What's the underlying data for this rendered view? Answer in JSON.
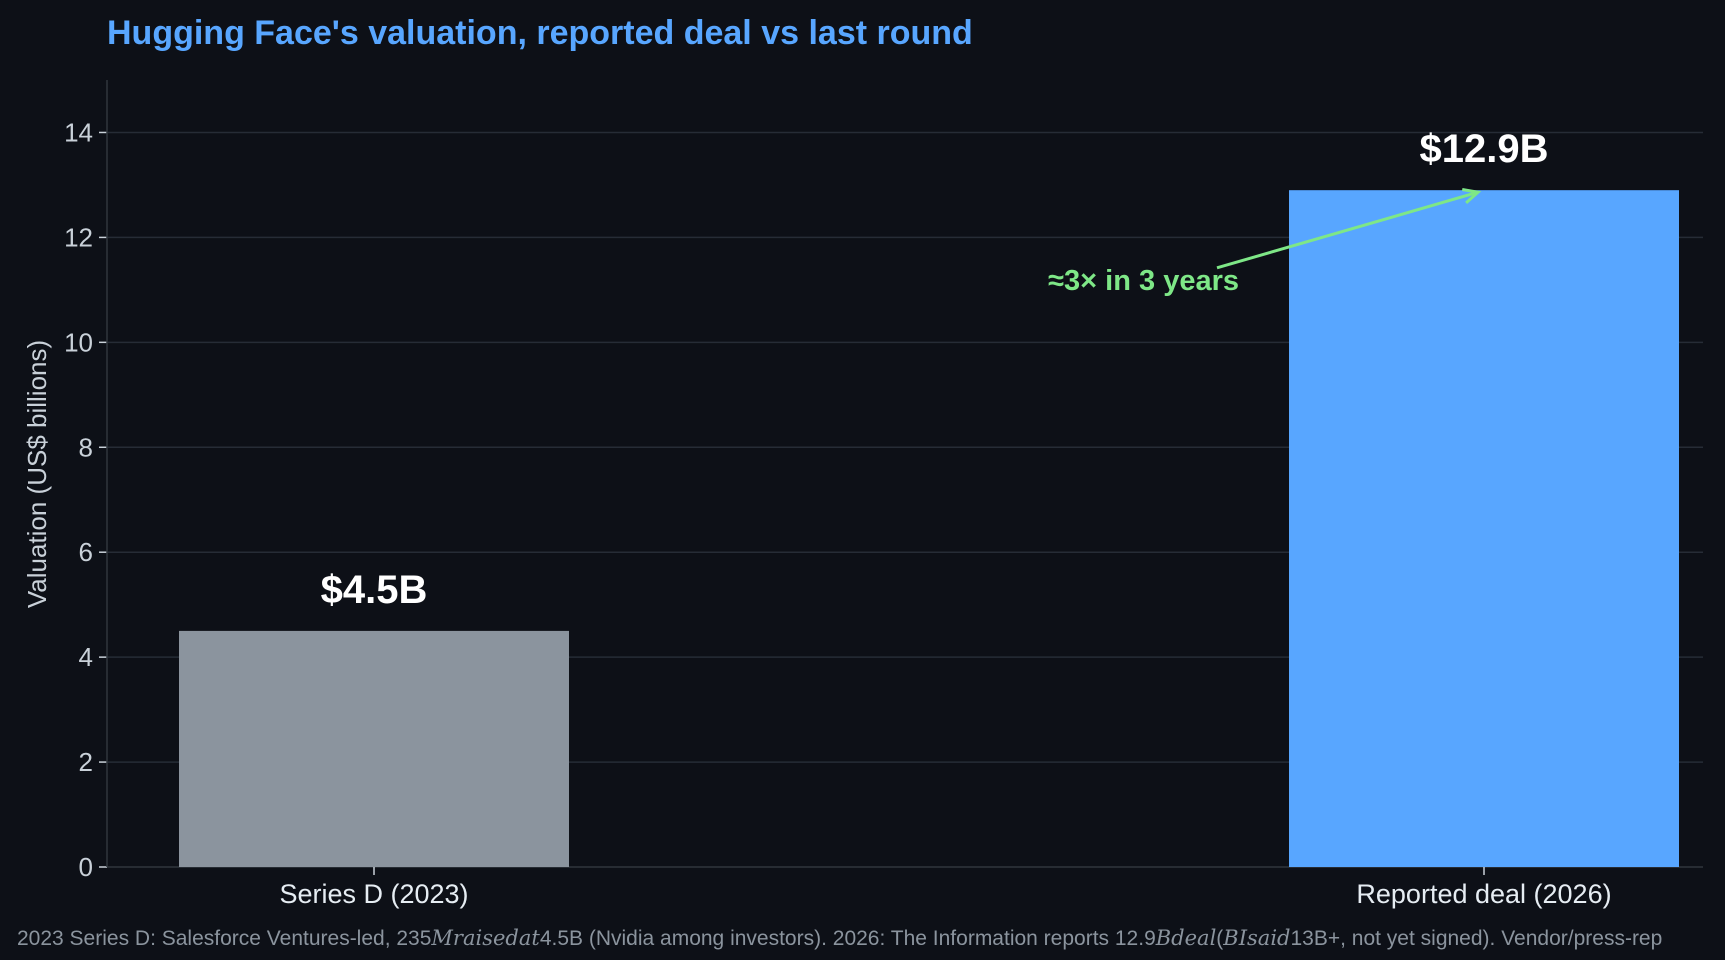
{
  "chart_data": {
    "type": "bar",
    "title": "Hugging Face's valuation, reported deal vs last round",
    "categories": [
      "Series D (2023)",
      "Reported deal (2026)"
    ],
    "values": [
      4.5,
      12.9
    ],
    "value_labels": [
      "$4.5B",
      "$12.9B"
    ],
    "colors": [
      "#8b949e",
      "#58a6ff"
    ],
    "ylabel": "Valuation (US$ billions)",
    "ylim": [
      0,
      15
    ],
    "yticks": [
      0,
      2,
      4,
      6,
      8,
      10,
      12,
      14
    ],
    "grid": "horizontal",
    "annotation": {
      "text": "≈3× in 3 years",
      "color": "#7ee787",
      "arrow_to_category": 1,
      "arrow_to_value": 12.9
    }
  },
  "footnote": {
    "part1": "2023 Series D: Salesforce Ventures-led, 235",
    "part2": "Mraisedat",
    "part3": "4.5B (Nvidia among investors). 2026: The Information reports 12.9",
    "part4": "Bdeal",
    "part5": "(",
    "part6": "BIsaid",
    "part7": "13B+, not yet signed). Vendor/press-rep"
  }
}
